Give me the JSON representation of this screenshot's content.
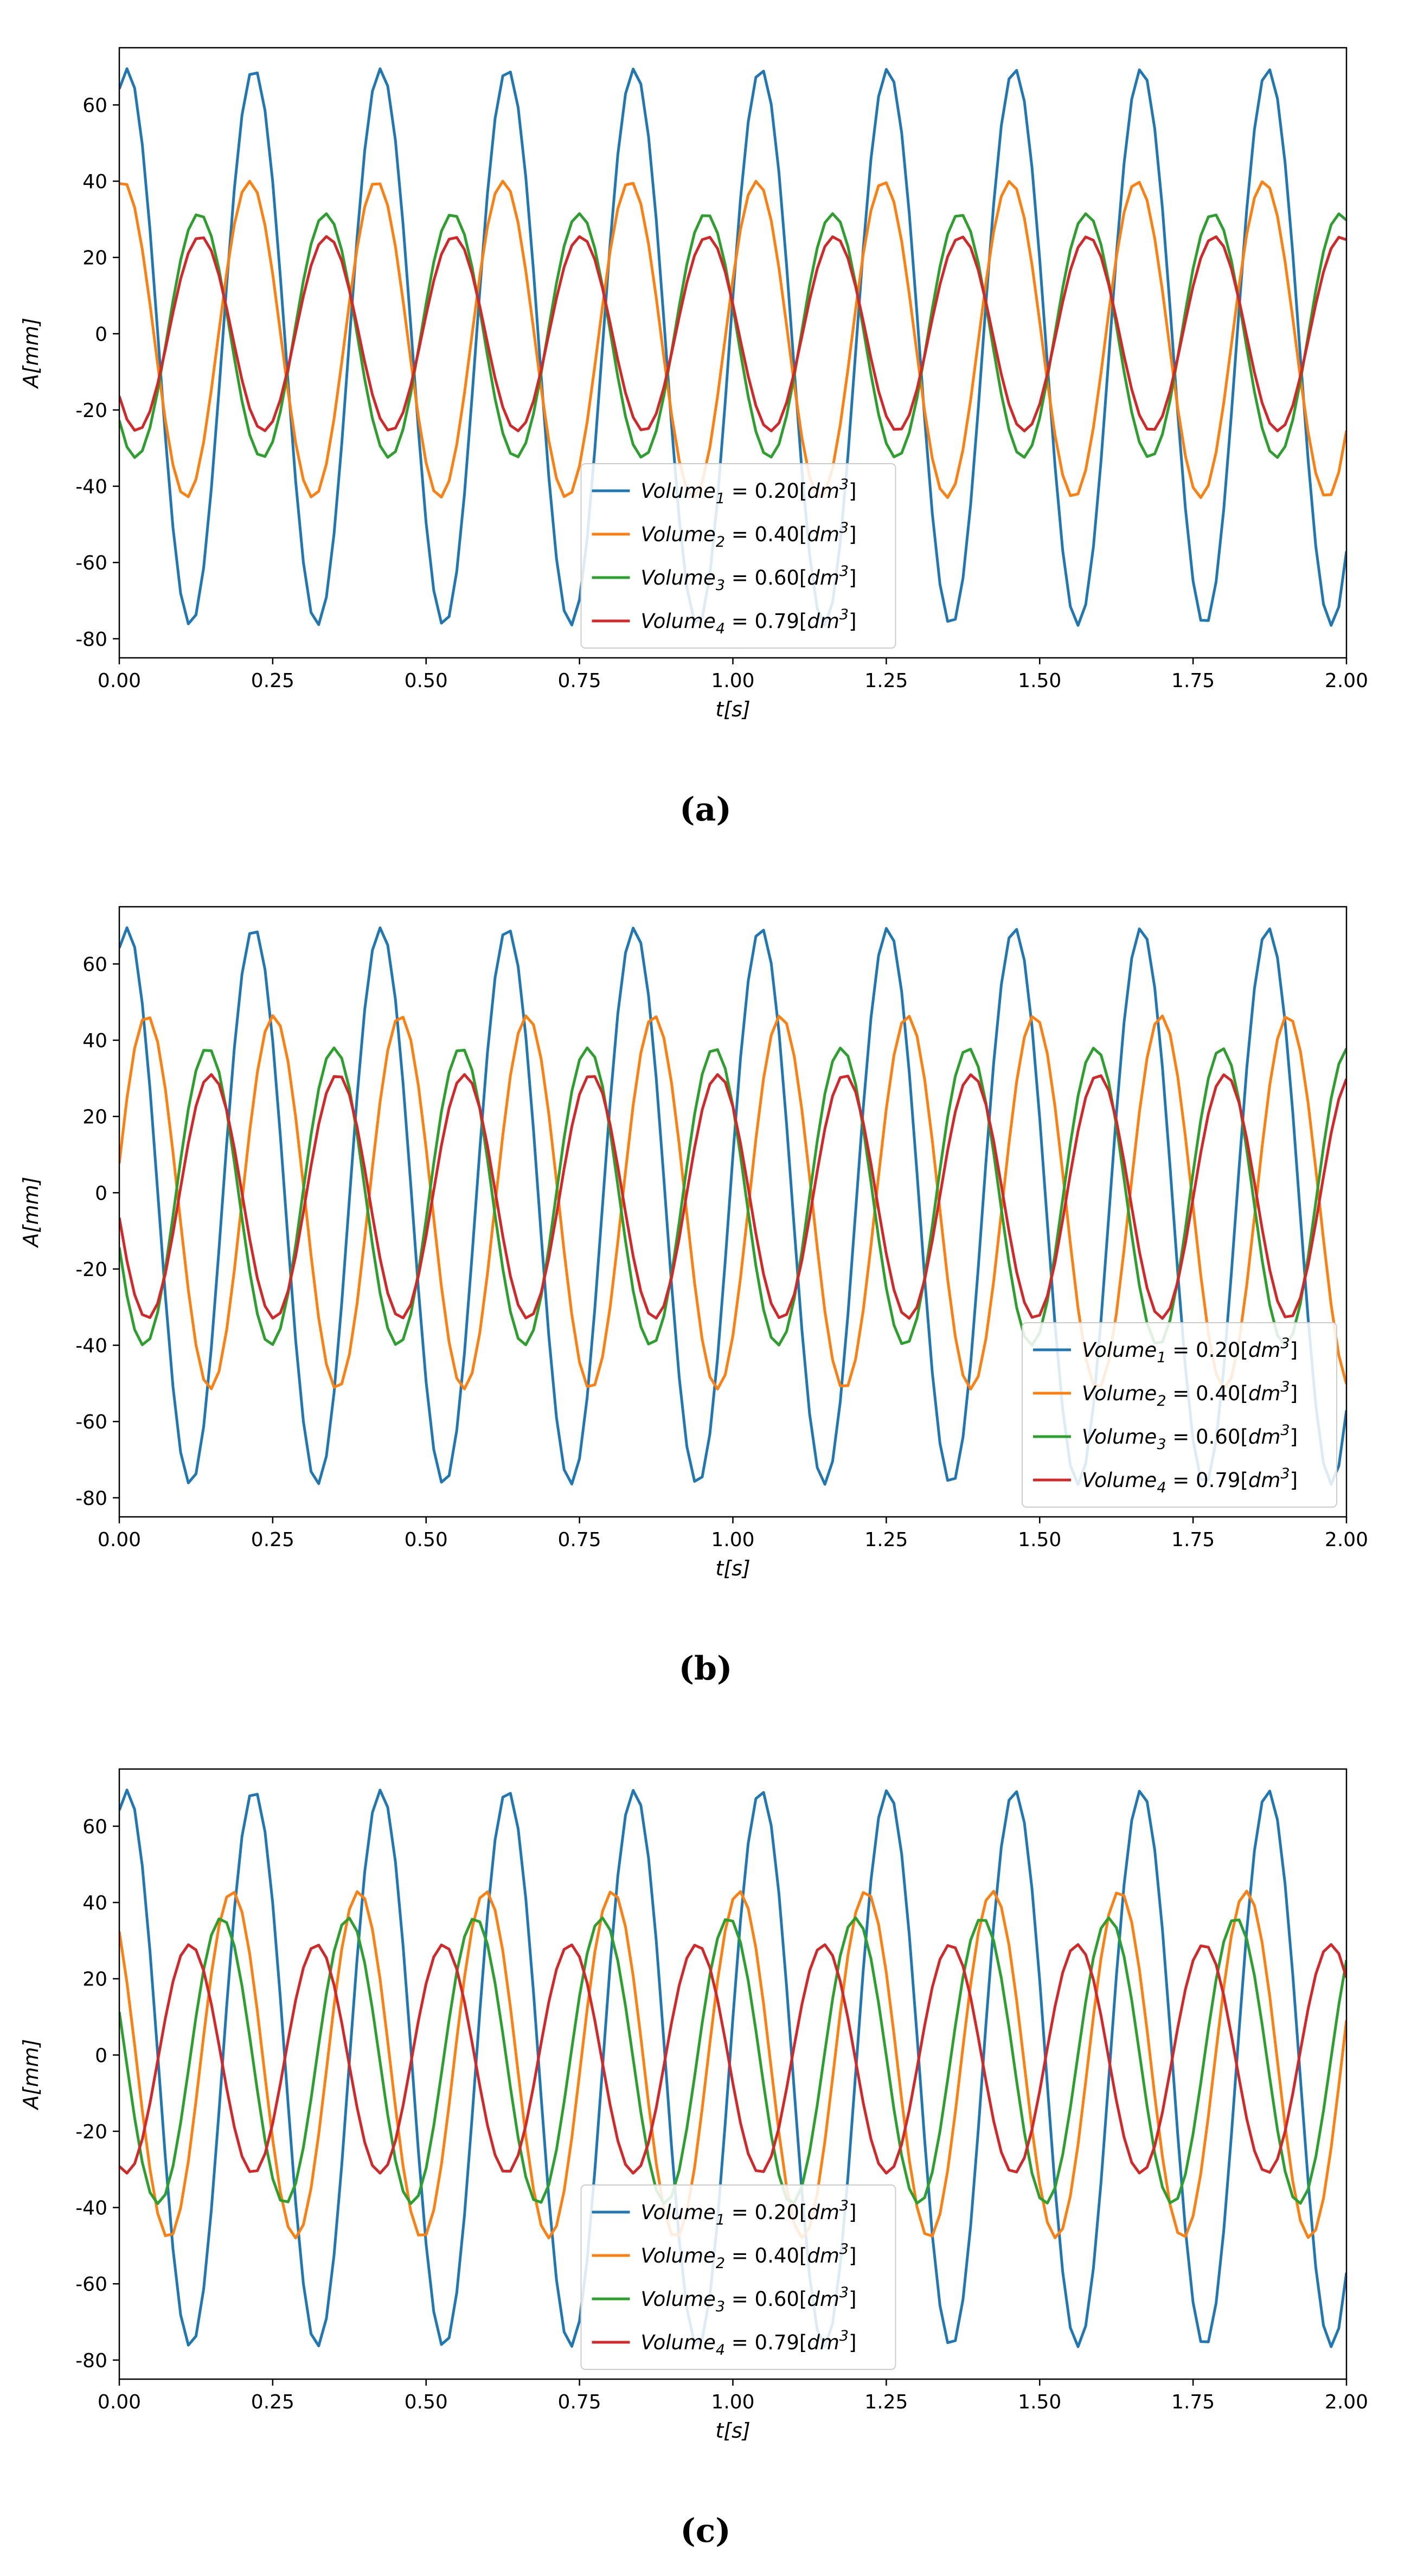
{
  "colors": {
    "series": [
      "#1f77b4",
      "#ff7f0e",
      "#2ca02c",
      "#d62728"
    ],
    "axis": "#000000"
  },
  "chart_data": [
    {
      "type": "line",
      "caption": "(a)",
      "xlabel": "t[s]",
      "ylabel": "A[mm]",
      "xlim": [
        0,
        2
      ],
      "ylim": [
        -85,
        75
      ],
      "xticks": [
        0.0,
        0.25,
        0.5,
        0.75,
        1.0,
        1.25,
        1.5,
        1.75,
        2.0
      ],
      "xtick_labels": [
        "0.00",
        "0.25",
        "0.50",
        "0.75",
        "1.00",
        "1.25",
        "1.50",
        "1.75",
        "2.00"
      ],
      "yticks": [
        -80,
        -60,
        -40,
        -20,
        0,
        20,
        40,
        60
      ],
      "ytick_labels": [
        "-80",
        "-60",
        "-40",
        "-20",
        "0",
        "20",
        "40",
        "60"
      ],
      "legend_position": "lower-center",
      "series": [
        {
          "name": "Volume_1 = 0.20[dm^3]",
          "label_base": "Volume",
          "label_sub": "1",
          "label_value": " = 0.20[",
          "label_unit": "dm",
          "label_exp": "3",
          "label_close": "]",
          "freq_hz": 4.84,
          "amplitude": 73,
          "offset": -3.5,
          "phase_deg": 68,
          "points": 161
        },
        {
          "name": "Volume_2 = 0.40[dm^3]",
          "label_base": "Volume",
          "label_sub": "2",
          "label_value": " = 0.40[",
          "label_unit": "dm",
          "label_exp": "3",
          "label_close": "]",
          "freq_hz": 4.84,
          "amplitude": 41.5,
          "offset": -1.5,
          "phase_deg": 80,
          "points": 161
        },
        {
          "name": "Volume_3 = 0.60[dm^3]",
          "label_base": "Volume",
          "label_sub": "3",
          "label_value": " = 0.60[",
          "label_unit": "dm",
          "label_exp": "3",
          "label_close": "]",
          "freq_hz": 4.84,
          "amplitude": 32,
          "offset": -0.5,
          "phase_deg": 224,
          "points": 161
        },
        {
          "name": "Volume_4 = 0.79[dm^3]",
          "label_base": "Volume",
          "label_sub": "4",
          "label_value": " = 0.79[",
          "label_unit": "dm",
          "label_exp": "3",
          "label_close": "]",
          "freq_hz": 4.84,
          "amplitude": 25.5,
          "offset": 0,
          "phase_deg": 220,
          "points": 161
        }
      ]
    },
    {
      "type": "line",
      "caption": "(b)",
      "xlabel": "t[s]",
      "ylabel": "A[mm]",
      "xlim": [
        0,
        2
      ],
      "ylim": [
        -85,
        75
      ],
      "xticks": [
        0.0,
        0.25,
        0.5,
        0.75,
        1.0,
        1.25,
        1.5,
        1.75,
        2.0
      ],
      "xtick_labels": [
        "0.00",
        "0.25",
        "0.50",
        "0.75",
        "1.00",
        "1.25",
        "1.50",
        "1.75",
        "2.00"
      ],
      "yticks": [
        -80,
        -60,
        -40,
        -20,
        0,
        20,
        40,
        60
      ],
      "ytick_labels": [
        "-80",
        "-60",
        "-40",
        "-20",
        "0",
        "20",
        "40",
        "60"
      ],
      "legend_position": "lower-right",
      "series": [
        {
          "name": "Volume_1 = 0.20[dm^3]",
          "label_base": "Volume",
          "label_sub": "1",
          "label_value": " = 0.20[",
          "label_unit": "dm",
          "label_exp": "3",
          "label_close": "]",
          "freq_hz": 4.84,
          "amplitude": 73,
          "offset": -3.5,
          "phase_deg": 68,
          "points": 161
        },
        {
          "name": "Volume_2 = 0.40[dm^3]",
          "label_base": "Volume",
          "label_sub": "2",
          "label_value": " = 0.40[",
          "label_unit": "dm",
          "label_exp": "3",
          "label_close": "]",
          "freq_hz": 4.84,
          "amplitude": 49,
          "offset": -2.5,
          "phase_deg": 12,
          "points": 161
        },
        {
          "name": "Volume_3 = 0.60[dm^3]",
          "label_base": "Volume",
          "label_sub": "3",
          "label_value": " = 0.60[",
          "label_unit": "dm",
          "label_exp": "3",
          "label_close": "]",
          "freq_hz": 4.84,
          "amplitude": 39,
          "offset": -1,
          "phase_deg": 200,
          "points": 161
        },
        {
          "name": "Volume_4 = 0.79[dm^3]",
          "label_base": "Volume",
          "label_sub": "4",
          "label_value": " = 0.79[",
          "label_unit": "dm",
          "label_exp": "3",
          "label_close": "]",
          "freq_hz": 4.84,
          "amplitude": 32,
          "offset": -1,
          "phase_deg": 190,
          "points": 161
        }
      ]
    },
    {
      "type": "line",
      "caption": "(c)",
      "xlabel": "t[s]",
      "ylabel": "A[mm]",
      "xlim": [
        0,
        2
      ],
      "ylim": [
        -85,
        75
      ],
      "xticks": [
        0.0,
        0.25,
        0.5,
        0.75,
        1.0,
        1.25,
        1.5,
        1.75,
        2.0
      ],
      "xtick_labels": [
        "0.00",
        "0.25",
        "0.50",
        "0.75",
        "1.00",
        "1.25",
        "1.50",
        "1.75",
        "2.00"
      ],
      "yticks": [
        -80,
        -60,
        -40,
        -20,
        0,
        20,
        40,
        60
      ],
      "ytick_labels": [
        "-80",
        "-60",
        "-40",
        "-20",
        "0",
        "20",
        "40",
        "60"
      ],
      "legend_position": "lower-center",
      "series": [
        {
          "name": "Volume_1 = 0.20[dm^3]",
          "label_base": "Volume",
          "label_sub": "1",
          "label_value": " = 0.20[",
          "label_unit": "dm",
          "label_exp": "3",
          "label_close": "]",
          "freq_hz": 4.84,
          "amplitude": 73,
          "offset": -3.5,
          "phase_deg": 68,
          "points": 161
        },
        {
          "name": "Volume_2 = 0.40[dm^3]",
          "label_base": "Volume",
          "label_sub": "2",
          "label_value": " = 0.40[",
          "label_unit": "dm",
          "label_exp": "3",
          "label_close": "]",
          "freq_hz": 4.84,
          "amplitude": 45.5,
          "offset": -2.5,
          "phase_deg": 130,
          "points": 161
        },
        {
          "name": "Volume_3 = 0.60[dm^3]",
          "label_base": "Volume",
          "label_sub": "3",
          "label_value": " = 0.60[",
          "label_unit": "dm",
          "label_exp": "3",
          "label_close": "]",
          "freq_hz": 4.84,
          "amplitude": 37.5,
          "offset": -1.5,
          "phase_deg": 160,
          "points": 161
        },
        {
          "name": "Volume_4 = 0.79[dm^3]",
          "label_base": "Volume",
          "label_sub": "4",
          "label_value": " = 0.79[",
          "label_unit": "dm",
          "label_exp": "3",
          "label_close": "]",
          "freq_hz": 4.84,
          "amplitude": 30,
          "offset": -1,
          "phase_deg": 250,
          "points": 161
        }
      ]
    }
  ]
}
